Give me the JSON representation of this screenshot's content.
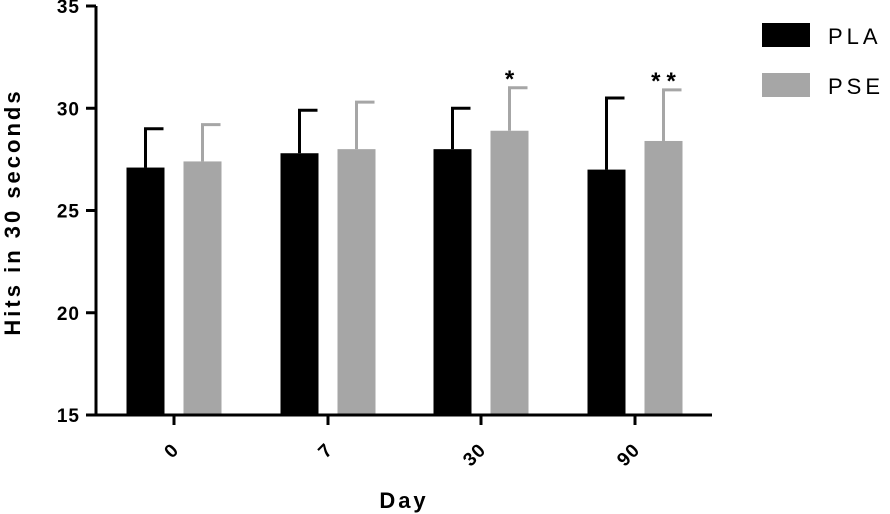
{
  "chart_data": {
    "type": "bar",
    "xlabel": "Day",
    "ylabel": "Hits in 30 seconds",
    "ylim": [
      15,
      35
    ],
    "yticks": [
      "15",
      "20",
      "25",
      "30",
      "35"
    ],
    "categories": [
      "0",
      "7",
      "30",
      "90"
    ],
    "series": [
      {
        "name": "PLA",
        "color": "#000000",
        "values": [
          27.1,
          27.8,
          28.0,
          27.0
        ],
        "errors": [
          1.9,
          2.1,
          2.0,
          3.5
        ]
      },
      {
        "name": "PSE",
        "color": "#a6a6a6",
        "values": [
          27.4,
          28.0,
          28.9,
          28.4
        ],
        "errors": [
          1.8,
          2.3,
          2.1,
          2.5
        ]
      }
    ],
    "annotations": [
      "",
      "",
      "*",
      "**"
    ],
    "legend_position": "top-right",
    "grid": false
  }
}
